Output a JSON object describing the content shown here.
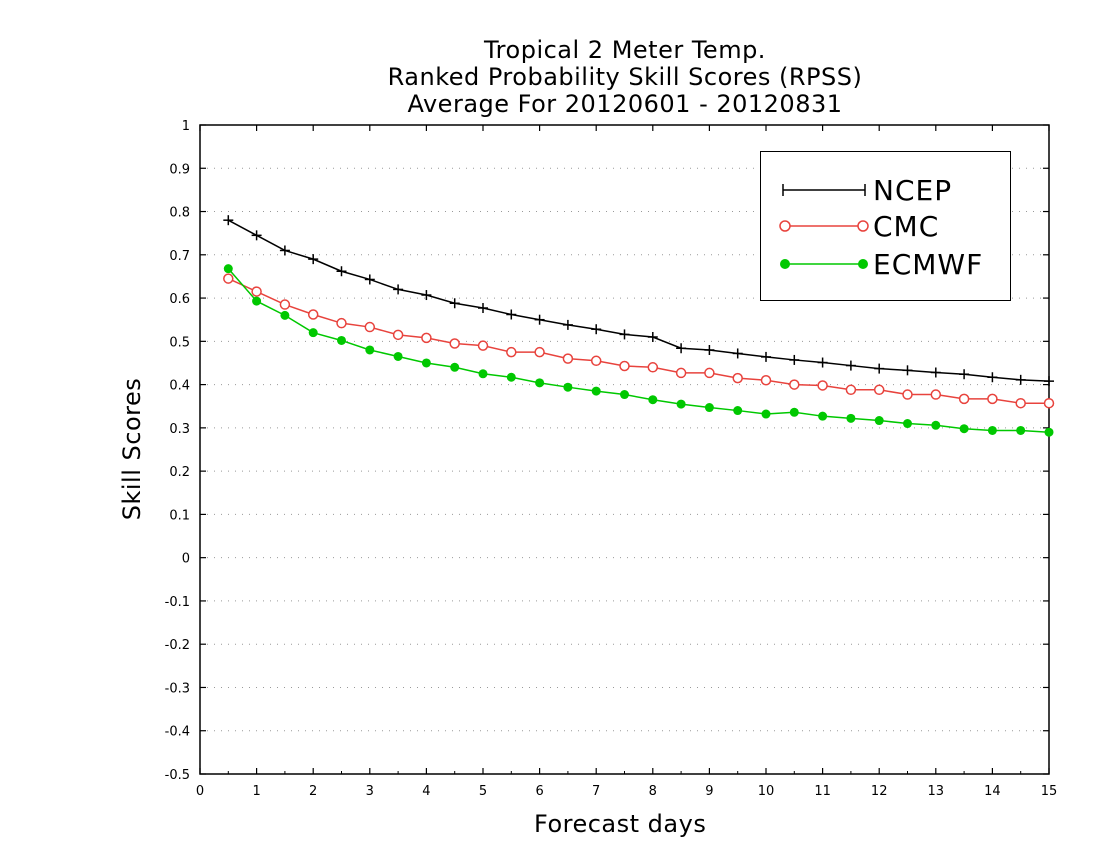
{
  "title": {
    "line1": "Tropical 2 Meter Temp.",
    "line2": "Ranked Probability Skill Scores (RPSS)",
    "line3": "Average For 20120601 - 20120831"
  },
  "chart_data": {
    "type": "line",
    "xlabel": "Forecast days",
    "ylabel": "Skill Scores",
    "xlim": [
      0,
      15
    ],
    "ylim": [
      -0.5,
      1
    ],
    "x_ticks": [
      "0",
      "1",
      "2",
      "3",
      "4",
      "5",
      "6",
      "7",
      "8",
      "9",
      "10",
      "11",
      "12",
      "13",
      "14",
      "15"
    ],
    "y_ticks": [
      "-0.5",
      "-0.4",
      "-0.3",
      "-0.2",
      "-0.1",
      "0",
      "0.1",
      "0.2",
      "0.3",
      "0.4",
      "0.5",
      "0.6",
      "0.7",
      "0.8",
      "0.9",
      "1"
    ],
    "grid": "horizontal dotted",
    "legend_position": "top-right",
    "x": [
      0.5,
      1,
      1.5,
      2,
      2.5,
      3,
      3.5,
      4,
      4.5,
      5,
      5.5,
      6,
      6.5,
      7,
      7.5,
      8,
      8.5,
      9,
      9.5,
      10,
      10.5,
      11,
      11.5,
      12,
      12.5,
      13,
      13.5,
      14,
      14.5,
      15
    ],
    "series": [
      {
        "name": "NCEP",
        "color": "#000000",
        "marker": "plus",
        "values": [
          0.78,
          0.745,
          0.71,
          0.69,
          0.662,
          0.643,
          0.62,
          0.607,
          0.588,
          0.577,
          0.562,
          0.55,
          0.538,
          0.528,
          0.516,
          0.51,
          0.484,
          0.48,
          0.472,
          0.464,
          0.457,
          0.451,
          0.444,
          0.437,
          0.433,
          0.428,
          0.424,
          0.417,
          0.411,
          0.408
        ]
      },
      {
        "name": "CMC",
        "color": "#e8433d",
        "marker": "open-circle",
        "values": [
          0.645,
          0.615,
          0.585,
          0.562,
          0.542,
          0.533,
          0.515,
          0.508,
          0.495,
          0.49,
          0.475,
          0.475,
          0.46,
          0.455,
          0.443,
          0.44,
          0.427,
          0.427,
          0.415,
          0.41,
          0.4,
          0.398,
          0.388,
          0.388,
          0.377,
          0.377,
          0.367,
          0.367,
          0.357,
          0.357
        ]
      },
      {
        "name": "ECMWF",
        "color": "#00c800",
        "marker": "filled-circle",
        "values": [
          0.668,
          0.593,
          0.56,
          0.52,
          0.502,
          0.48,
          0.465,
          0.45,
          0.44,
          0.425,
          0.417,
          0.404,
          0.394,
          0.385,
          0.377,
          0.365,
          0.355,
          0.347,
          0.34,
          0.332,
          0.336,
          0.327,
          0.322,
          0.317,
          0.31,
          0.306,
          0.298,
          0.294,
          0.294,
          0.29
        ]
      }
    ]
  }
}
